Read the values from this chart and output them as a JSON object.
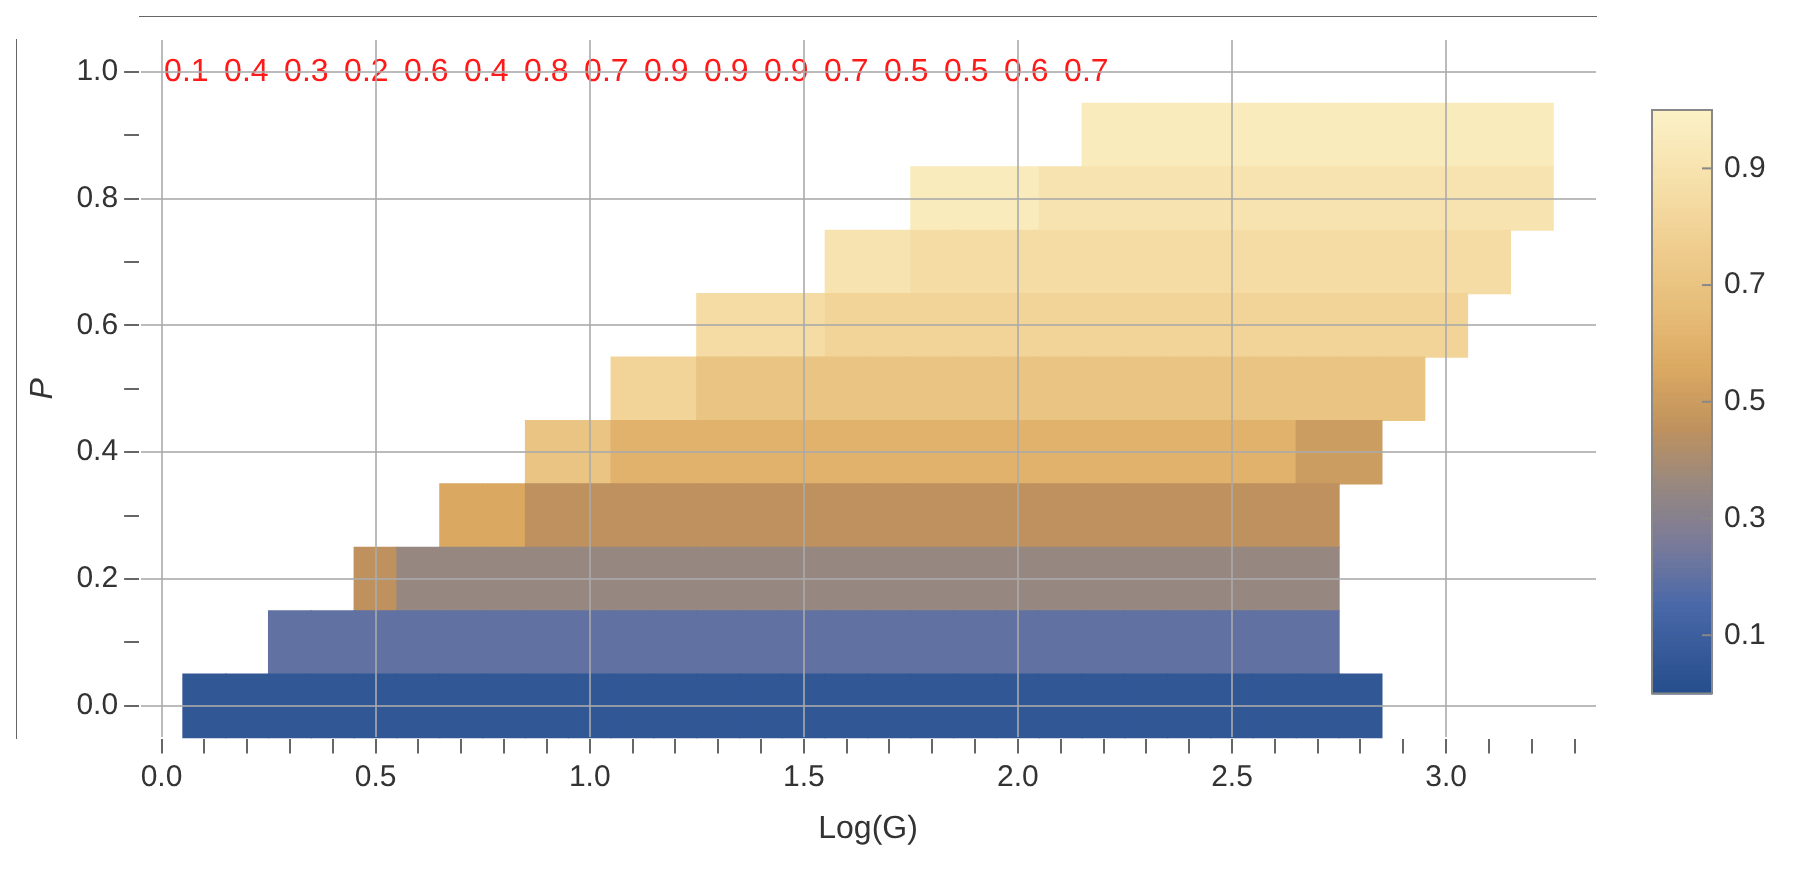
{
  "chart_data": {
    "type": "heatmap",
    "xlabel": "Log(G)",
    "ylabel": "P",
    "categories": [
      "0.0",
      null,
      null,
      null,
      null,
      "0.5",
      null,
      null,
      null,
      null,
      "1.0",
      null,
      null,
      null,
      null,
      "1.5",
      null,
      null,
      null,
      null,
      "2.0",
      null,
      null,
      null,
      null,
      "2.5",
      null,
      null,
      null,
      null,
      "3.0",
      null,
      null,
      null
    ],
    "y_categories": [
      "1.0",
      null,
      "0.8",
      null,
      "0.6",
      null,
      "0.4",
      null,
      "0.2",
      null,
      "0.0"
    ],
    "cells": [
      [
        null,
        null,
        null,
        null,
        null,
        null,
        null,
        null,
        null,
        null,
        null,
        null,
        null,
        null,
        null,
        null,
        null,
        null,
        null,
        null,
        null,
        null,
        null,
        null,
        null,
        null,
        null,
        null,
        null,
        null,
        null,
        null,
        null,
        null
      ],
      [
        null,
        null,
        null,
        null,
        null,
        null,
        null,
        null,
        null,
        null,
        null,
        null,
        null,
        null,
        null,
        null,
        null,
        null,
        null,
        null,
        null,
        null,
        0.95,
        0.95,
        0.95,
        0.95,
        0.95,
        0.95,
        0.95,
        0.95,
        0.95,
        0.95,
        0.95,
        null
      ],
      [
        null,
        null,
        null,
        null,
        null,
        null,
        null,
        null,
        null,
        null,
        null,
        null,
        null,
        null,
        null,
        null,
        null,
        null,
        0.95,
        0.95,
        0.95,
        0.9,
        0.9,
        0.9,
        0.9,
        0.9,
        0.9,
        0.9,
        0.9,
        0.9,
        0.9,
        0.9,
        0.9,
        null
      ],
      [
        null,
        null,
        null,
        null,
        null,
        null,
        null,
        null,
        null,
        null,
        null,
        null,
        null,
        null,
        null,
        null,
        0.9,
        0.9,
        0.85,
        0.85,
        0.85,
        0.85,
        0.85,
        0.85,
        0.85,
        0.85,
        0.85,
        0.85,
        0.85,
        0.85,
        0.85,
        0.85,
        null,
        null
      ],
      [
        null,
        null,
        null,
        null,
        null,
        null,
        null,
        null,
        null,
        null,
        null,
        null,
        null,
        0.85,
        0.85,
        0.85,
        0.8,
        0.8,
        0.8,
        0.8,
        0.8,
        0.8,
        0.8,
        0.8,
        0.8,
        0.8,
        0.8,
        0.8,
        0.8,
        0.8,
        0.8,
        null,
        null,
        null
      ],
      [
        null,
        null,
        null,
        null,
        null,
        null,
        null,
        null,
        null,
        null,
        null,
        0.8,
        0.8,
        0.7,
        0.7,
        0.7,
        0.7,
        0.7,
        0.7,
        0.7,
        0.7,
        0.7,
        0.7,
        0.7,
        0.7,
        0.7,
        0.7,
        0.7,
        0.7,
        0.7,
        null,
        null,
        null,
        null
      ],
      [
        null,
        null,
        null,
        null,
        null,
        null,
        null,
        null,
        null,
        0.7,
        0.7,
        0.6,
        0.6,
        0.6,
        0.6,
        0.6,
        0.6,
        0.6,
        0.6,
        0.6,
        0.6,
        0.6,
        0.6,
        0.6,
        0.6,
        0.6,
        0.6,
        0.5,
        0.5,
        null,
        null,
        null,
        null,
        null
      ],
      [
        null,
        null,
        null,
        null,
        null,
        null,
        null,
        0.55,
        0.55,
        0.45,
        0.45,
        0.45,
        0.45,
        0.45,
        0.45,
        0.45,
        0.45,
        0.45,
        0.45,
        0.45,
        0.45,
        0.45,
        0.45,
        0.45,
        0.45,
        0.45,
        0.45,
        0.45,
        null,
        null,
        null,
        null,
        null,
        null
      ],
      [
        null,
        null,
        null,
        null,
        null,
        0.45,
        0.35,
        0.35,
        0.35,
        0.35,
        0.35,
        0.35,
        0.35,
        0.35,
        0.35,
        0.35,
        0.35,
        0.35,
        0.35,
        0.35,
        0.35,
        0.35,
        0.35,
        0.35,
        0.35,
        0.35,
        0.35,
        0.35,
        null,
        null,
        null,
        null,
        null,
        null
      ],
      [
        null,
        null,
        null,
        0.2,
        0.2,
        0.2,
        0.2,
        0.2,
        0.2,
        0.2,
        0.2,
        0.2,
        0.2,
        0.2,
        0.2,
        0.2,
        0.2,
        0.2,
        0.2,
        0.2,
        0.2,
        0.2,
        0.2,
        0.2,
        0.2,
        0.2,
        0.2,
        0.2,
        null,
        null,
        null,
        null,
        null,
        null
      ],
      [
        null,
        0.05,
        0.05,
        0.05,
        0.05,
        0.05,
        0.05,
        0.05,
        0.05,
        0.05,
        0.05,
        0.05,
        0.05,
        0.05,
        0.05,
        0.05,
        0.05,
        0.05,
        0.05,
        0.05,
        0.05,
        0.05,
        0.05,
        0.05,
        0.05,
        0.05,
        0.05,
        0.05,
        0.05,
        null,
        null,
        null,
        null,
        null
      ]
    ],
    "clim": [
      0,
      1
    ],
    "cticks": [
      0.1,
      0.3,
      0.5,
      0.7,
      0.9
    ],
    "grid": true,
    "annotations": [
      "0.1",
      "0.4",
      "0.3",
      "0.2",
      "0.6",
      "0.4",
      "0.8",
      "0.7",
      "0.9",
      "0.9",
      "0.9",
      "0.7",
      "0.5",
      "0.5",
      "0.6",
      "0.7"
    ]
  }
}
